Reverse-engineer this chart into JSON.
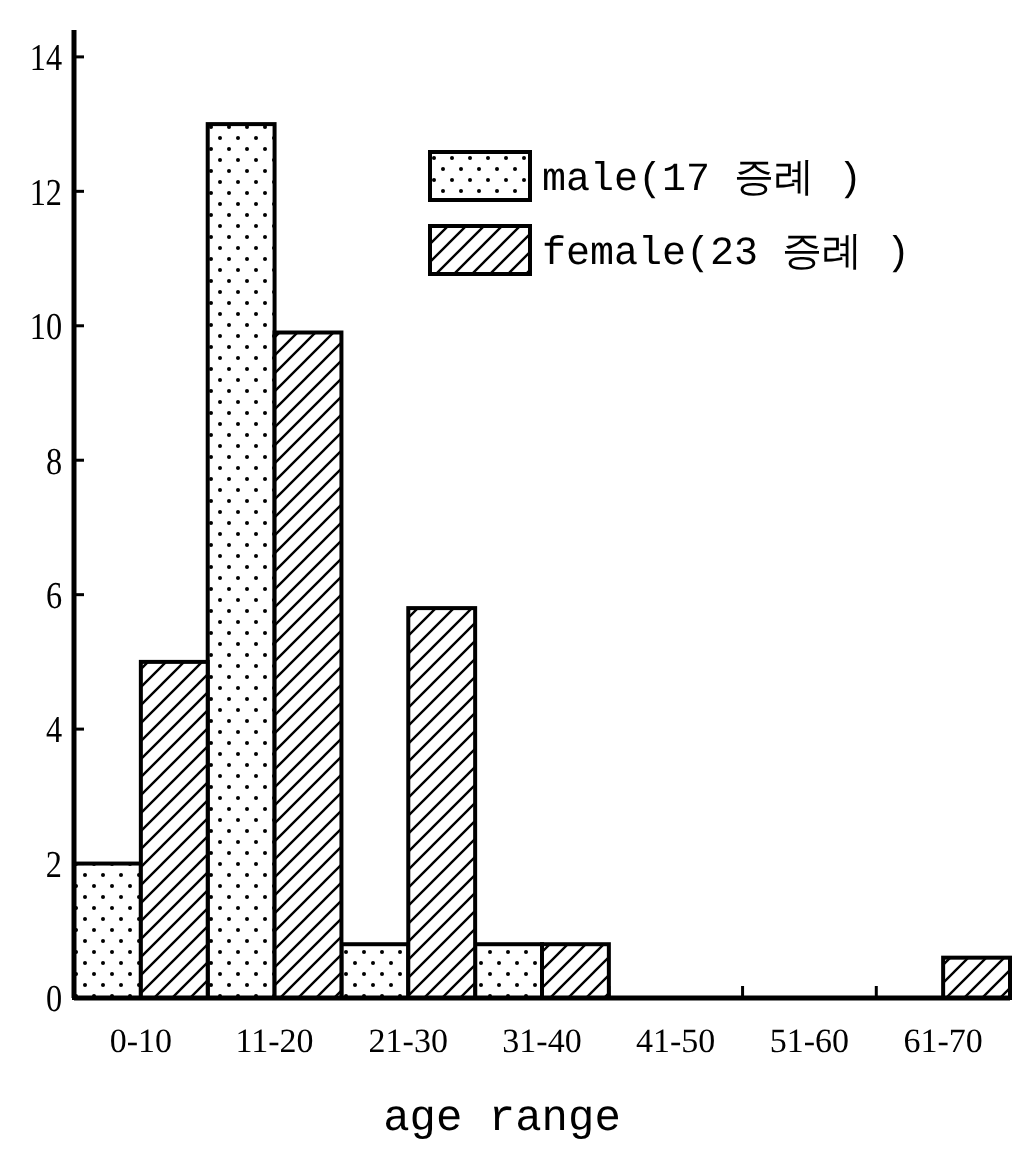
{
  "chart_data": {
    "type": "bar",
    "xlabel": "age range",
    "categories": [
      "0-10",
      "11-20",
      "21-30",
      "31-40",
      "41-50",
      "51-60",
      "61-70"
    ],
    "series": [
      {
        "name": "male(17 증례 )",
        "color": "#000000",
        "values": [
          2,
          13,
          0.8,
          0.8,
          0,
          0,
          0
        ]
      },
      {
        "name": "female(23 증례 )",
        "color": "#000000",
        "values": [
          5,
          9.9,
          5.8,
          0.8,
          0,
          0,
          0.6
        ]
      }
    ],
    "ylim": [
      0,
      14.4
    ],
    "yticks": [
      0,
      2,
      4,
      6,
      8,
      10,
      12,
      14
    ],
    "grid": false,
    "legend": "top right"
  }
}
